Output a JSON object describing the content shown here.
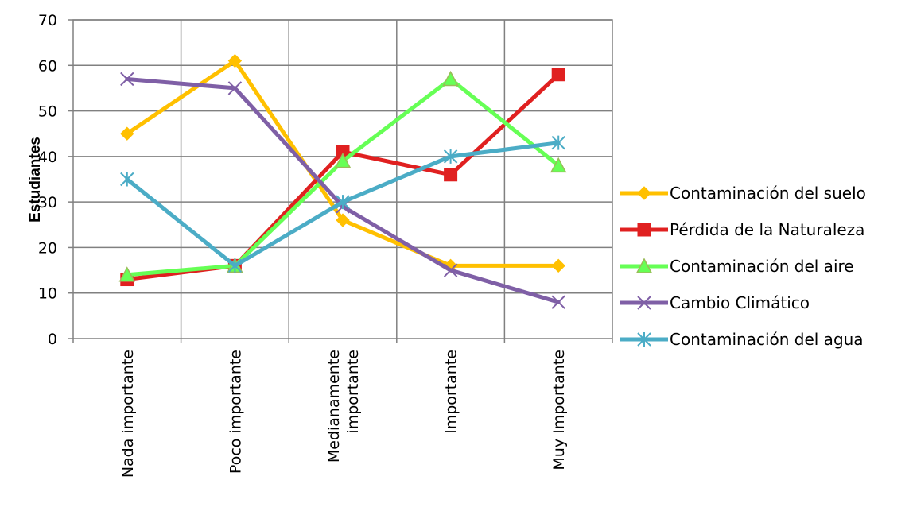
{
  "chart_data": {
    "type": "line",
    "title": "",
    "xlabel": "",
    "ylabel": "Estudiantes",
    "ylim": [
      0,
      70
    ],
    "yticks": [
      0,
      10,
      20,
      30,
      40,
      50,
      60,
      70
    ],
    "grid": true,
    "legend_position": "right",
    "categories": [
      [
        "Nada importante"
      ],
      [
        "Poco importante"
      ],
      [
        "Medianamente",
        "importante"
      ],
      [
        "Importante"
      ],
      [
        "Muy Importante"
      ]
    ],
    "series": [
      {
        "name": "Contaminación del suelo",
        "color": "#FFC000",
        "marker": "diamond",
        "values": [
          45,
          61,
          26,
          16,
          16
        ]
      },
      {
        "name": "Pérdida de la Naturaleza",
        "color": "#E02020",
        "marker": "square",
        "values": [
          13,
          16,
          41,
          36,
          58
        ]
      },
      {
        "name": "Contaminación del aire",
        "color": "#66FF55",
        "marker": "triangle",
        "values": [
          14,
          16,
          39,
          57,
          38
        ]
      },
      {
        "name": "Cambio Climático",
        "color": "#7F5FA6",
        "marker": "x",
        "values": [
          57,
          55,
          29,
          15,
          8
        ]
      },
      {
        "name": "Contaminación del agua",
        "color": "#4BACC6",
        "marker": "star",
        "values": [
          35,
          16,
          30,
          40,
          43
        ]
      }
    ]
  }
}
